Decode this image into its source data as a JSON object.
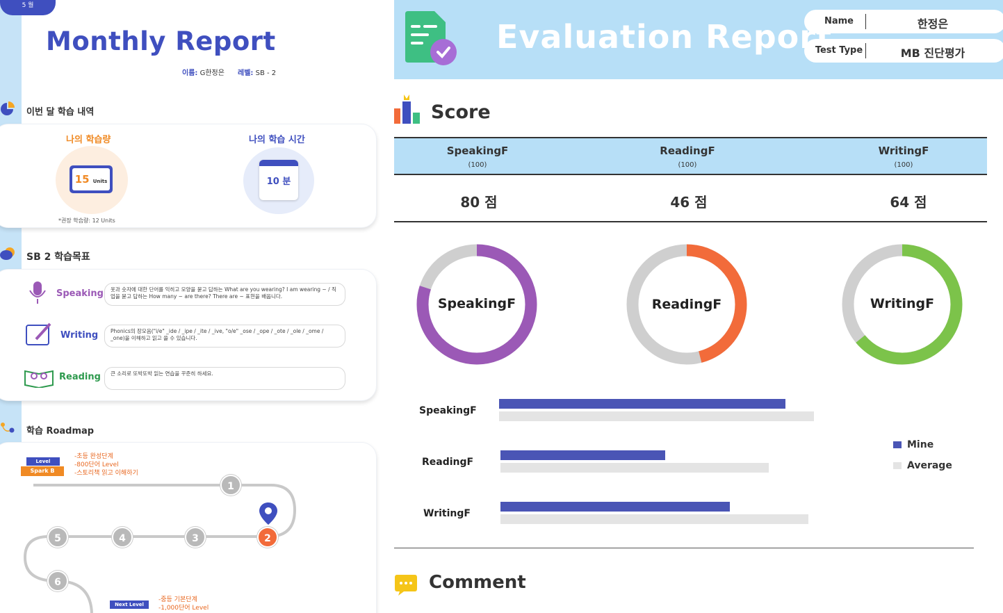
{
  "left": {
    "tab_label": "5 월",
    "title": "Monthly Report",
    "meta": {
      "name_label": "이름:",
      "name_value": "G한정은",
      "level_label": "레벨:",
      "level_value": "SB - 2"
    },
    "section1": "이번 달 학습 내역",
    "study_amount": {
      "label": "나의 학습량",
      "value": "15",
      "unit": "Units",
      "note": "*권장 학습량: 12 Units"
    },
    "study_time": {
      "label": "나의 학습 시간",
      "value": "10 분"
    },
    "section2": "SB 2 학습목표",
    "goals": [
      {
        "label": "Speaking",
        "text": "옷과 숫자에 대한 단어를 익히고 모양을 묻고 답하는 What are you wearing? I am wearing ~ / 직업을 묻고 답하는 How many ~ are there? There are ~ 표현을 배웁니다."
      },
      {
        "label": "Writing",
        "text": "Phonics의 장모음(\"i/e\" _ide / _ipe / _ite / _ive, \"o/e\" _ose / _ope / _ote / _ole / _ome / _one)을 이해하고 읽고 쓸 수 있습니다."
      },
      {
        "label": "Reading",
        "text": "큰 소리로 또박또박 읽는 연습을 꾸준히 하세요."
      }
    ],
    "section3": "학습 Roadmap",
    "roadmap": {
      "sign_top": "Level",
      "sign_bottom": "Spark B",
      "start_notes": "-초등 완성단계\n-800단어 Level\n-스토리책 읽고 이해하기",
      "nodes": [
        "1",
        "2",
        "3",
        "4",
        "5",
        "6"
      ],
      "next_sign": "Next Level",
      "end_notes": "-중등 기본단계\n-1,000단어 Level"
    }
  },
  "right": {
    "title": "Evaluation Report",
    "name_label": "Name",
    "name_value": "한정은",
    "type_label": "Test Type",
    "type_value": "MB 진단평가",
    "score_title": "Score",
    "table": [
      {
        "name": "SpeakingF",
        "max": "(100)",
        "score": "80 점"
      },
      {
        "name": "ReadingF",
        "max": "(100)",
        "score": "46 점"
      },
      {
        "name": "WritingF",
        "max": "(100)",
        "score": "64 점"
      }
    ],
    "comment_title": "Comment"
  },
  "colors": {
    "speaking": "#9b59b6",
    "reading": "#f26b3a",
    "writing": "#7cc34a",
    "mine": "#4a55b5",
    "average": "#e4e4e4",
    "ring_bg": "#cfcfcf"
  },
  "chart_data": [
    {
      "type": "pie",
      "subtype": "donut",
      "charts": [
        {
          "label": "SpeakingF",
          "value": 80,
          "max": 100
        },
        {
          "label": "ReadingF",
          "value": 46,
          "max": 100
        },
        {
          "label": "WritingF",
          "value": 64,
          "max": 100
        }
      ]
    },
    {
      "type": "bar",
      "orientation": "horizontal",
      "categories": [
        "SpeakingF",
        "ReadingF",
        "WritingF"
      ],
      "series": [
        {
          "name": "Mine",
          "values": [
            80,
            46,
            64
          ]
        },
        {
          "name": "Average",
          "values": [
            88,
            75,
            86
          ]
        }
      ],
      "xlim": [
        0,
        100
      ],
      "legend": "right"
    }
  ]
}
